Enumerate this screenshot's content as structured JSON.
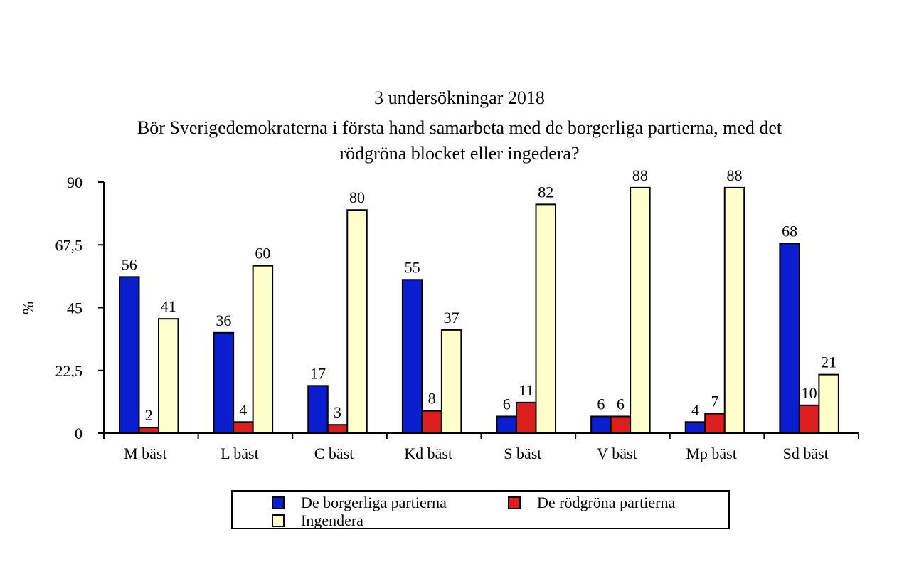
{
  "chart_data": {
    "type": "bar",
    "title": "3 undersökningar 2018",
    "subtitle_lines": [
      "Bör Sverigedemokraterna i första hand samarbeta med de borgerliga partierna, med det",
      "rödgröna blocket eller ingedera?"
    ],
    "ylabel": "%",
    "ylim": [
      0,
      90
    ],
    "yticks": [
      "0",
      "22,5",
      "45",
      "67,5",
      "90"
    ],
    "ytick_values": [
      0,
      22.5,
      45,
      67.5,
      90
    ],
    "categories": [
      "M bäst",
      "L bäst",
      "C bäst",
      "Kd bäst",
      "S bäst",
      "V bäst",
      "Mp bäst",
      "Sd bäst"
    ],
    "series": [
      {
        "name": "De borgerliga partierna",
        "color": "#0a1ecf",
        "values": [
          56,
          36,
          17,
          55,
          6,
          6,
          4,
          68
        ]
      },
      {
        "name": "De rödgröna partierna",
        "color": "#dc1e1e",
        "values": [
          2,
          4,
          3,
          8,
          11,
          6,
          7,
          10
        ]
      },
      {
        "name": "Ingendera",
        "color": "#ffffcc",
        "values": [
          41,
          60,
          80,
          37,
          82,
          88,
          88,
          21
        ]
      }
    ],
    "legend_position": "bottom",
    "grid": false
  }
}
